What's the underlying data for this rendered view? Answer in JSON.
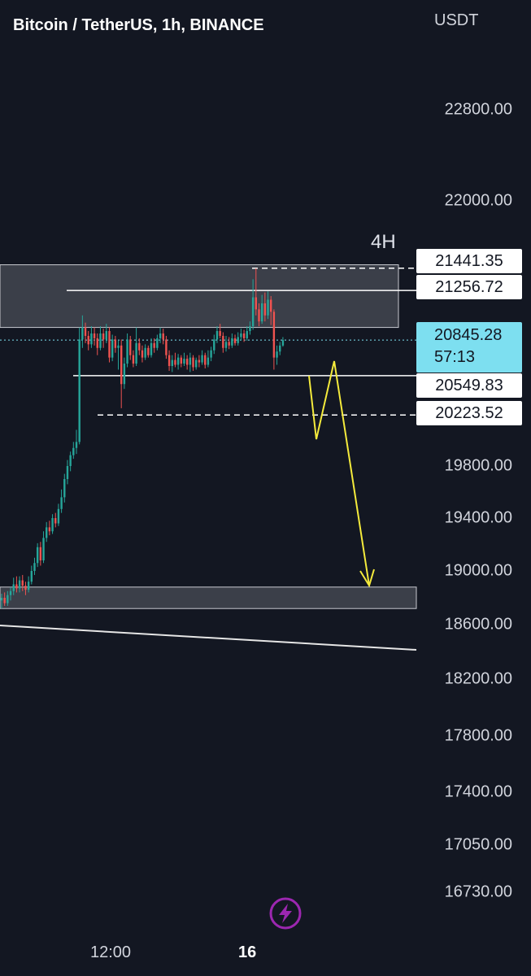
{
  "header": {
    "title": "Bitcoin / TetherUS, 1h, BINANCE",
    "currency": "USDT"
  },
  "annotation_label": "4H",
  "current_price": {
    "value": "20845.28",
    "countdown": "57:13"
  },
  "colors": {
    "background": "#131722",
    "up": "#26a69a",
    "down": "#ef5350",
    "zone_fill": "#4a4d57",
    "arrow": "#f5eb3c",
    "current_price_tag": "#7ddff0",
    "icon_accent": "#9c27b0"
  },
  "icons": {
    "bolt": "lightning-bolt-icon"
  },
  "chart_data": {
    "type": "candlestick",
    "title": "Bitcoin / TetherUS, 1h, BINANCE",
    "y_axis_label": "USDT",
    "y_ticks": [
      "22800.00",
      "22000.00",
      "19800.00",
      "19400.00",
      "19000.00",
      "18600.00",
      "18200.00",
      "17800.00",
      "17400.00",
      "17050.00",
      "16730.00"
    ],
    "x_ticks": [
      "12:00",
      "16"
    ],
    "price_tags": [
      "21441.35",
      "21256.72",
      "20549.83",
      "20223.52"
    ],
    "zones": [
      {
        "label": "4H",
        "from": 20950,
        "to": 21470
      },
      {
        "from": 18720,
        "to": 18880
      }
    ],
    "levels": [
      {
        "price": 21441.35,
        "style": "dashed"
      },
      {
        "price": 21256.72,
        "style": "solid"
      },
      {
        "price": 20549.83,
        "style": "solid"
      },
      {
        "price": 20223.52,
        "style": "dashed"
      },
      {
        "price": 20845.28,
        "style": "dotted",
        "current": true
      }
    ],
    "candles": [
      [
        18780,
        18800,
        18720,
        18830
      ],
      [
        18800,
        18760,
        18740,
        18840
      ],
      [
        18760,
        18820,
        18740,
        18850
      ],
      [
        18820,
        18850,
        18780,
        18880
      ],
      [
        18850,
        18900,
        18820,
        18950
      ],
      [
        18900,
        18870,
        18840,
        18960
      ],
      [
        18870,
        18930,
        18840,
        18960
      ],
      [
        18930,
        18890,
        18850,
        18970
      ],
      [
        18890,
        18860,
        18820,
        18920
      ],
      [
        18860,
        18920,
        18840,
        18960
      ],
      [
        18920,
        19000,
        18900,
        19040
      ],
      [
        19000,
        19060,
        18970,
        19100
      ],
      [
        19060,
        19180,
        19030,
        19210
      ],
      [
        19180,
        19080,
        19040,
        19220
      ],
      [
        19080,
        19250,
        19060,
        19300
      ],
      [
        19250,
        19330,
        19220,
        19370
      ],
      [
        19330,
        19300,
        19270,
        19380
      ],
      [
        19300,
        19400,
        19280,
        19430
      ],
      [
        19400,
        19360,
        19330,
        19440
      ],
      [
        19360,
        19470,
        19340,
        19510
      ],
      [
        19470,
        19560,
        19440,
        19620
      ],
      [
        19560,
        19700,
        19520,
        19740
      ],
      [
        19700,
        19800,
        19660,
        19850
      ],
      [
        19800,
        19890,
        19760,
        19920
      ],
      [
        19890,
        19950,
        19860,
        20000
      ],
      [
        19950,
        20000,
        19900,
        20100
      ],
      [
        20000,
        20850,
        19980,
        20950
      ],
      [
        20850,
        20950,
        20780,
        21050
      ],
      [
        20950,
        20880,
        20820,
        20990
      ],
      [
        20880,
        20810,
        20760,
        20920
      ],
      [
        20810,
        20900,
        20780,
        20960
      ],
      [
        20900,
        20860,
        20800,
        20950
      ],
      [
        20860,
        20780,
        20720,
        20900
      ],
      [
        20780,
        20900,
        20760,
        20960
      ],
      [
        20900,
        20850,
        20780,
        20940
      ],
      [
        20850,
        20920,
        20820,
        20980
      ],
      [
        20920,
        20700,
        20660,
        20950
      ],
      [
        20700,
        20850,
        20670,
        20890
      ],
      [
        20850,
        20780,
        20740,
        20880
      ],
      [
        20780,
        20800,
        20600,
        20840
      ],
      [
        20800,
        20480,
        20280,
        20850
      ],
      [
        20480,
        20650,
        20440,
        20700
      ],
      [
        20650,
        20850,
        20620,
        20900
      ],
      [
        20850,
        20720,
        20680,
        20880
      ],
      [
        20720,
        20650,
        20620,
        20760
      ],
      [
        20650,
        20820,
        20630,
        20950
      ],
      [
        20820,
        20760,
        20720,
        20860
      ],
      [
        20760,
        20700,
        20660,
        20800
      ],
      [
        20700,
        20780,
        20680,
        20810
      ],
      [
        20780,
        20720,
        20700,
        20800
      ],
      [
        20720,
        20820,
        20700,
        20860
      ],
      [
        20820,
        20780,
        20740,
        20860
      ],
      [
        20780,
        20860,
        20760,
        20890
      ],
      [
        20860,
        20900,
        20820,
        20950
      ],
      [
        20900,
        20850,
        20810,
        20940
      ],
      [
        20850,
        20720,
        20690,
        20880
      ],
      [
        20720,
        20630,
        20590,
        20760
      ],
      [
        20630,
        20680,
        20580,
        20720
      ],
      [
        20680,
        20640,
        20620,
        20740
      ],
      [
        20640,
        20700,
        20600,
        20730
      ],
      [
        20700,
        20650,
        20620,
        20720
      ],
      [
        20650,
        20690,
        20630,
        20740
      ],
      [
        20690,
        20640,
        20600,
        20720
      ],
      [
        20640,
        20700,
        20580,
        20740
      ],
      [
        20700,
        20620,
        20590,
        20720
      ],
      [
        20620,
        20680,
        20600,
        20700
      ],
      [
        20680,
        20660,
        20620,
        20720
      ],
      [
        20660,
        20720,
        20640,
        20760
      ],
      [
        20720,
        20640,
        20610,
        20740
      ],
      [
        20640,
        20700,
        20620,
        20760
      ],
      [
        20700,
        20760,
        20670,
        20790
      ],
      [
        20760,
        20850,
        20730,
        20890
      ],
      [
        20850,
        20920,
        20820,
        20960
      ],
      [
        20920,
        20880,
        20860,
        20980
      ],
      [
        20880,
        20780,
        20740,
        20910
      ],
      [
        20780,
        20830,
        20750,
        20880
      ],
      [
        20830,
        20800,
        20770,
        20870
      ],
      [
        20800,
        20860,
        20780,
        20900
      ],
      [
        20860,
        20820,
        20800,
        20890
      ],
      [
        20820,
        20870,
        20800,
        20910
      ],
      [
        20870,
        20900,
        20840,
        20940
      ],
      [
        20900,
        20860,
        20830,
        20930
      ],
      [
        20860,
        20920,
        20840,
        20960
      ],
      [
        20920,
        20960,
        20890,
        21000
      ],
      [
        20960,
        21200,
        20930,
        21350
      ],
      [
        21200,
        21100,
        21050,
        21440
      ],
      [
        21100,
        21000,
        20960,
        21150
      ],
      [
        21000,
        21150,
        20980,
        21220
      ],
      [
        21150,
        21050,
        21000,
        21240
      ],
      [
        21050,
        21180,
        21020,
        21250
      ],
      [
        21180,
        21080,
        20970,
        21210
      ],
      [
        21080,
        20700,
        20600,
        21100
      ],
      [
        20700,
        20750,
        20640,
        20800
      ],
      [
        20750,
        20800,
        20720,
        20830
      ],
      [
        20800,
        20845,
        20790,
        20870
      ]
    ]
  }
}
